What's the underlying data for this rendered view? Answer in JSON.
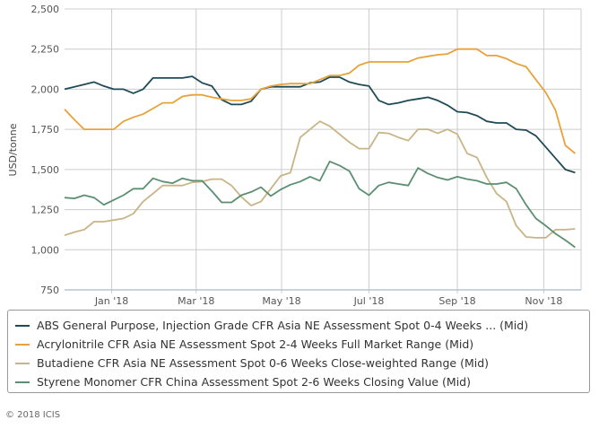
{
  "chart_data": {
    "type": "line",
    "ylabel": "USD/tonne",
    "ylim": [
      750,
      2500
    ],
    "yticks": [
      750,
      1000,
      1250,
      1500,
      1750,
      2000,
      2250,
      2500
    ],
    "ytick_labels": [
      "750",
      "1,000",
      "1,250",
      "1,500",
      "1,750",
      "2,000",
      "2,250",
      "2,500"
    ],
    "x_unit": "week index (weekly points, Dec 2017 – Nov 2018)",
    "xlim": [
      0,
      52.6
    ],
    "xticks": [
      {
        "label": "Jan '18",
        "x": 4.8
      },
      {
        "label": "Mar '18",
        "x": 13.4
      },
      {
        "label": "May '18",
        "x": 22.1
      },
      {
        "label": "Jul '18",
        "x": 31
      },
      {
        "label": "Sep '18",
        "x": 40
      },
      {
        "label": "Nov '18",
        "x": 48.8
      }
    ],
    "grid": true,
    "legend_position": "bottom",
    "series": [
      {
        "name": "ABS General Purpose, Injection Grade CFR Asia NE Assessment Spot 0-4 Weeks ... (Mid)",
        "color": "#1e4b55",
        "values": [
          2000,
          2015,
          2030,
          2045,
          2020,
          2000,
          2000,
          1975,
          2000,
          2070,
          2070,
          2070,
          2070,
          2080,
          2040,
          2020,
          1935,
          1905,
          1905,
          1925,
          2000,
          2015,
          2015,
          2015,
          2015,
          2040,
          2045,
          2075,
          2075,
          2045,
          2030,
          2020,
          1930,
          1905,
          1915,
          1930,
          1940,
          1950,
          1930,
          1900,
          1860,
          1855,
          1835,
          1800,
          1790,
          1790,
          1750,
          1745,
          1710,
          1640,
          1570,
          1500,
          1480
        ]
      },
      {
        "name": "Acrylonitrile CFR Asia NE Assessment Spot 2-4 Weeks Full Market Range (Mid)",
        "color": "#e8a23a",
        "values": [
          1875,
          1810,
          1750,
          1750,
          1750,
          1750,
          1800,
          1825,
          1845,
          1880,
          1915,
          1915,
          1955,
          1965,
          1965,
          1950,
          1940,
          1930,
          1930,
          1940,
          2000,
          2020,
          2030,
          2035,
          2035,
          2035,
          2060,
          2085,
          2085,
          2100,
          2150,
          2170,
          2170,
          2170,
          2170,
          2170,
          2195,
          2205,
          2215,
          2220,
          2250,
          2250,
          2250,
          2210,
          2210,
          2190,
          2160,
          2140,
          2060,
          1980,
          1870,
          1650,
          1600
        ]
      },
      {
        "name": "Butadiene CFR Asia NE Assessment Spot 0-6 Weeks Close-weighted Range (Mid)",
        "color": "#c9b487",
        "values": [
          1090,
          1110,
          1125,
          1175,
          1175,
          1185,
          1195,
          1225,
          1300,
          1350,
          1400,
          1400,
          1400,
          1420,
          1425,
          1440,
          1440,
          1400,
          1330,
          1275,
          1300,
          1380,
          1460,
          1480,
          1700,
          1750,
          1800,
          1770,
          1720,
          1670,
          1630,
          1630,
          1730,
          1725,
          1700,
          1680,
          1750,
          1750,
          1725,
          1750,
          1720,
          1600,
          1575,
          1450,
          1350,
          1300,
          1150,
          1080,
          1075,
          1075,
          1125,
          1125,
          1130
        ]
      },
      {
        "name": "Styrene Monomer CFR China Assessment Spot 2-6 Weeks Closing Value (Mid)",
        "color": "#5b8f72",
        "values": [
          1325,
          1320,
          1340,
          1325,
          1280,
          1310,
          1340,
          1380,
          1380,
          1445,
          1425,
          1415,
          1445,
          1430,
          1430,
          1365,
          1295,
          1295,
          1340,
          1360,
          1390,
          1335,
          1375,
          1405,
          1425,
          1455,
          1430,
          1550,
          1525,
          1490,
          1380,
          1340,
          1400,
          1420,
          1410,
          1400,
          1510,
          1475,
          1450,
          1435,
          1455,
          1440,
          1430,
          1410,
          1410,
          1420,
          1380,
          1280,
          1195,
          1150,
          1100,
          1060,
          1015
        ]
      }
    ]
  },
  "footer": {
    "copyright": "© 2018 ICIS"
  }
}
